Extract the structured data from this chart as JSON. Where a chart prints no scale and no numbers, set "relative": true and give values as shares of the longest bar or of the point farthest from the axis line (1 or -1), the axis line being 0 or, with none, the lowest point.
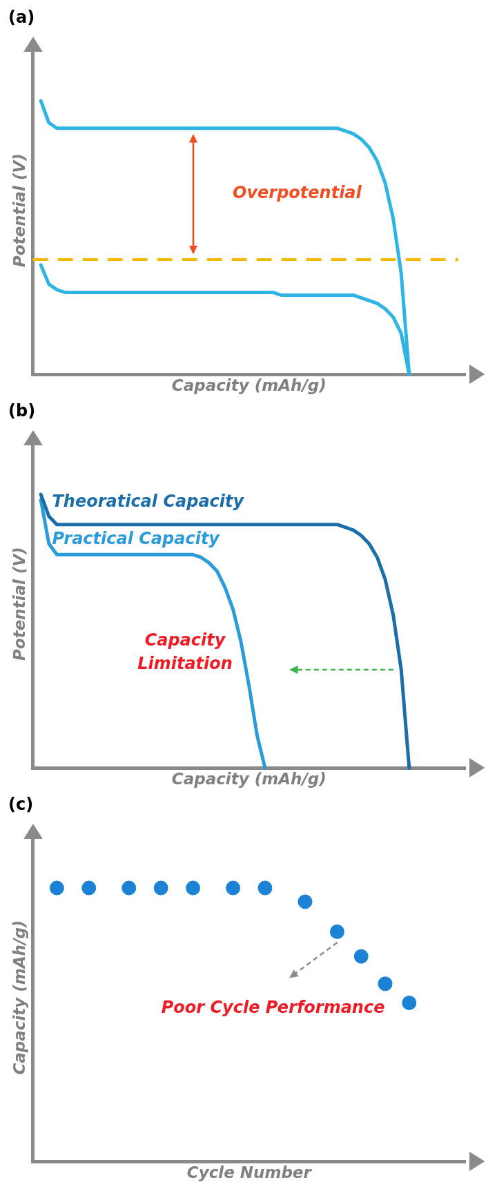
{
  "chart_data": [
    {
      "type": "line",
      "title": "(a)",
      "xlabel": "Capacity (mAh/g)",
      "ylabel": "Potential (V)",
      "relative": true,
      "annotations": [
        "Overpotential"
      ],
      "categories": [
        null,
        null,
        null,
        null,
        null,
        null,
        null,
        null,
        null,
        null,
        null,
        null,
        null,
        null,
        null,
        null,
        null,
        null,
        null,
        null,
        null,
        null,
        null,
        null,
        null,
        null,
        null,
        null,
        null,
        null,
        null,
        null,
        null,
        null,
        null,
        null,
        null,
        null,
        null,
        null,
        null,
        null,
        null,
        null,
        null,
        null,
        null,
        null,
        null,
        null,
        null,
        null,
        null,
        null,
        null
      ],
      "series": [
        {
          "color": "#2fb4e4",
          "values": [
            null,
            1.0,
            0.92,
            0.9,
            0.9,
            0.9,
            0.9,
            0.9,
            0.9,
            0.9,
            0.9,
            0.9,
            0.9,
            0.9,
            0.9,
            0.9,
            0.9,
            0.9,
            0.9,
            0.9,
            0.9,
            0.9,
            0.9,
            0.9,
            0.9,
            0.9,
            0.9,
            0.9,
            0.9,
            0.9,
            0.9,
            0.9,
            0.9,
            0.9,
            0.9,
            0.9,
            0.9,
            0.9,
            0.9,
            0.89,
            0.88,
            0.86,
            0.83,
            0.78,
            0.7,
            0.57,
            0.37,
            0,
            null,
            null,
            null,
            null,
            null,
            null,
            null
          ]
        },
        {
          "color": "#2fb4e4",
          "values": [
            null,
            0.4,
            0.33,
            0.31,
            0.3,
            0.3,
            0.3,
            0.3,
            0.3,
            0.3,
            0.3,
            0.3,
            0.3,
            0.3,
            0.3,
            0.3,
            0.3,
            0.3,
            0.3,
            0.3,
            0.3,
            0.3,
            0.3,
            0.3,
            0.3,
            0.3,
            0.3,
            0.3,
            0.3,
            0.3,
            0.3,
            0.29,
            0.29,
            0.29,
            0.29,
            0.29,
            0.29,
            0.29,
            0.29,
            0.29,
            0.29,
            0.28,
            0.27,
            0.26,
            0.24,
            0.21,
            0.15,
            0,
            null,
            null,
            null,
            null,
            null,
            null,
            null
          ]
        }
      ],
      "ref_lines": [
        {
          "axis": "y",
          "value": 0.42,
          "color": "#f5b800",
          "line_style": "dashed"
        }
      ],
      "grid": false,
      "legend": false,
      "line_style": "solid"
    },
    {
      "type": "line",
      "title": "(b)",
      "xlabel": "Capacity (mAh/g)",
      "ylabel": "Potential (V)",
      "relative": true,
      "annotations": [
        "Capacity Limitation"
      ],
      "categories": [
        null,
        null,
        null,
        null,
        null,
        null,
        null,
        null,
        null,
        null,
        null,
        null,
        null,
        null,
        null,
        null,
        null,
        null,
        null,
        null,
        null,
        null,
        null,
        null,
        null,
        null,
        null,
        null,
        null,
        null,
        null,
        null,
        null,
        null,
        null,
        null,
        null,
        null,
        null,
        null,
        null,
        null,
        null,
        null,
        null,
        null,
        null,
        null,
        null,
        null,
        null,
        null,
        null,
        null,
        null
      ],
      "series": [
        {
          "name": "Theoratical Capacity",
          "color": "#1b6ea8",
          "values": [
            null,
            1.0,
            0.92,
            0.89,
            0.89,
            0.89,
            0.89,
            0.89,
            0.89,
            0.89,
            0.89,
            0.89,
            0.89,
            0.89,
            0.89,
            0.89,
            0.89,
            0.89,
            0.89,
            0.89,
            0.89,
            0.89,
            0.89,
            0.89,
            0.89,
            0.89,
            0.89,
            0.89,
            0.89,
            0.89,
            0.89,
            0.89,
            0.89,
            0.89,
            0.89,
            0.89,
            0.89,
            0.89,
            0.89,
            0.88,
            0.87,
            0.85,
            0.82,
            0.77,
            0.69,
            0.56,
            0.36,
            0,
            null,
            null,
            null,
            null,
            null,
            null,
            null
          ]
        },
        {
          "name": "Practical Capacity",
          "color": "#2b9cd8",
          "values": [
            null,
            0.98,
            0.82,
            0.78,
            0.78,
            0.78,
            0.78,
            0.78,
            0.78,
            0.78,
            0.78,
            0.78,
            0.78,
            0.78,
            0.78,
            0.78,
            0.78,
            0.78,
            0.78,
            0.78,
            0.78,
            0.77,
            0.75,
            0.72,
            0.66,
            0.58,
            0.46,
            0.3,
            0.12,
            0,
            null,
            null,
            null,
            null,
            null,
            null,
            null,
            null,
            null,
            null,
            null,
            null,
            null,
            null,
            null,
            null,
            null,
            null,
            null,
            null,
            null,
            null,
            null,
            null,
            null
          ]
        }
      ],
      "grid": false,
      "legend": false,
      "line_style": "solid"
    },
    {
      "type": "scatter",
      "title": "(c)",
      "xlabel": "Cycle Number",
      "ylabel": "Capacity (mAh/g)",
      "relative": true,
      "annotations": [
        "Poor Cycle Performance"
      ],
      "categories": [
        null,
        null,
        null,
        null,
        null,
        null,
        null,
        null,
        null,
        null,
        null,
        null,
        null,
        null,
        null,
        null,
        null,
        null,
        null,
        null,
        null,
        null,
        null,
        null,
        null,
        null,
        null,
        null,
        null,
        null,
        null,
        null,
        null,
        null,
        null,
        null,
        null,
        null,
        null,
        null,
        null,
        null,
        null,
        null,
        null,
        null,
        null,
        null,
        null,
        null,
        null,
        null,
        null,
        null,
        null
      ],
      "series": [
        {
          "color": "#1b82d6",
          "values": [
            null,
            null,
            null,
            1,
            null,
            null,
            null,
            1,
            null,
            null,
            null,
            null,
            1,
            null,
            null,
            null,
            1,
            null,
            null,
            null,
            1,
            null,
            null,
            null,
            null,
            1,
            null,
            null,
            null,
            1,
            null,
            null,
            null,
            null,
            0.95,
            null,
            null,
            null,
            0.84,
            null,
            null,
            0.75,
            null,
            null,
            0.65,
            null,
            null,
            0.58,
            null,
            null,
            null,
            null,
            null,
            null,
            null
          ]
        }
      ],
      "grid": false,
      "legend": false,
      "marker": "circle"
    }
  ]
}
